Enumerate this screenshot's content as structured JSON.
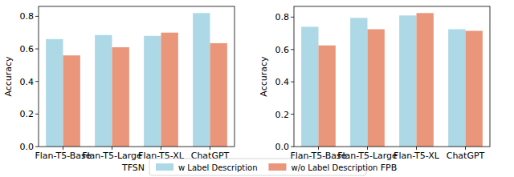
{
  "chart_data": [
    {
      "type": "bar",
      "x_label": "TFSN",
      "y_label": "Accuracy",
      "categories": [
        "Flan-T5-Base",
        "Flan-T5-Large",
        "Flan-T5-XL",
        "ChatGPT"
      ],
      "series": [
        {
          "name": "w Label Description",
          "color": "#add8e6",
          "values": [
            0.66,
            0.685,
            0.68,
            0.82
          ]
        },
        {
          "name": "w/o Label Description",
          "color": "#e9967a",
          "values": [
            0.56,
            0.61,
            0.7,
            0.635
          ]
        }
      ],
      "ylim": [
        0,
        0.861
      ],
      "yticks": [
        {
          "value": 0,
          "label": "0.0"
        },
        {
          "value": 0.2,
          "label": "0.2"
        },
        {
          "value": 0.4,
          "label": "0.4"
        },
        {
          "value": 0.6,
          "label": "0.6"
        },
        {
          "value": 0.8,
          "label": "0.8"
        }
      ],
      "legend": "bottom"
    },
    {
      "type": "bar",
      "x_label": "FPB",
      "y_label": "Accuracy",
      "categories": [
        "Flan-T5-Base",
        "Flan-T5-Large",
        "Flan-T5-XL",
        "ChatGPT"
      ],
      "series": [
        {
          "name": "w Label Description",
          "color": "#add8e6",
          "values": [
            0.74,
            0.795,
            0.81,
            0.725
          ]
        },
        {
          "name": "w/o Label Description",
          "color": "#e9967a",
          "values": [
            0.625,
            0.725,
            0.825,
            0.715
          ]
        }
      ],
      "ylim": [
        0,
        0.866
      ],
      "yticks": [
        {
          "value": 0,
          "label": "0.0"
        },
        {
          "value": 0.2,
          "label": "0.2"
        },
        {
          "value": 0.4,
          "label": "0.4"
        },
        {
          "value": 0.6,
          "label": "0.6"
        },
        {
          "value": 0.8,
          "label": "0.8"
        }
      ]
    }
  ]
}
